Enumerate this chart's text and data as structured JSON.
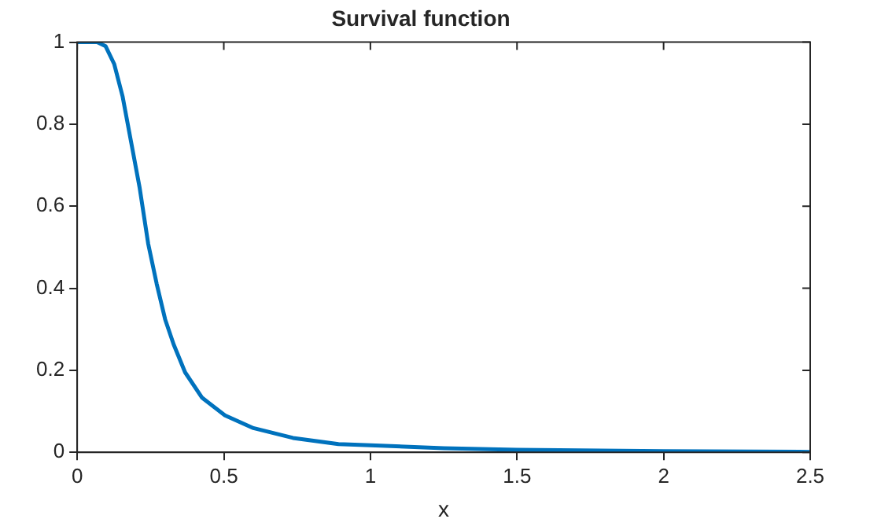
{
  "chart_data": {
    "type": "line",
    "title": "Survival function",
    "xlabel": "x",
    "xlim": [
      0,
      2.5
    ],
    "xticks": [
      0,
      0.5,
      1,
      1.5,
      2,
      2.5
    ],
    "ylim": [
      0,
      1
    ],
    "yticks": [
      0,
      0.2,
      0.4,
      0.6,
      0.8,
      1
    ],
    "grid": false,
    "legend": false,
    "marker": "none",
    "line_style": "solid",
    "series": [
      {
        "color": "#0072bd",
        "x": [
          0,
          0.068,
          0.097,
          0.126,
          0.155,
          0.184,
          0.213,
          0.242,
          0.271,
          0.3,
          0.329,
          0.368,
          0.426,
          0.504,
          0.601,
          0.736,
          0.891,
          1,
          1.25,
          1.5,
          2,
          2.5
        ],
        "values": [
          1,
          1,
          0.99,
          0.947,
          0.867,
          0.756,
          0.645,
          0.509,
          0.411,
          0.324,
          0.263,
          0.195,
          0.133,
          0.09,
          0.059,
          0.035,
          0.02,
          0.017,
          0.01,
          0.006,
          0.003,
          0.001
        ]
      }
    ]
  }
}
